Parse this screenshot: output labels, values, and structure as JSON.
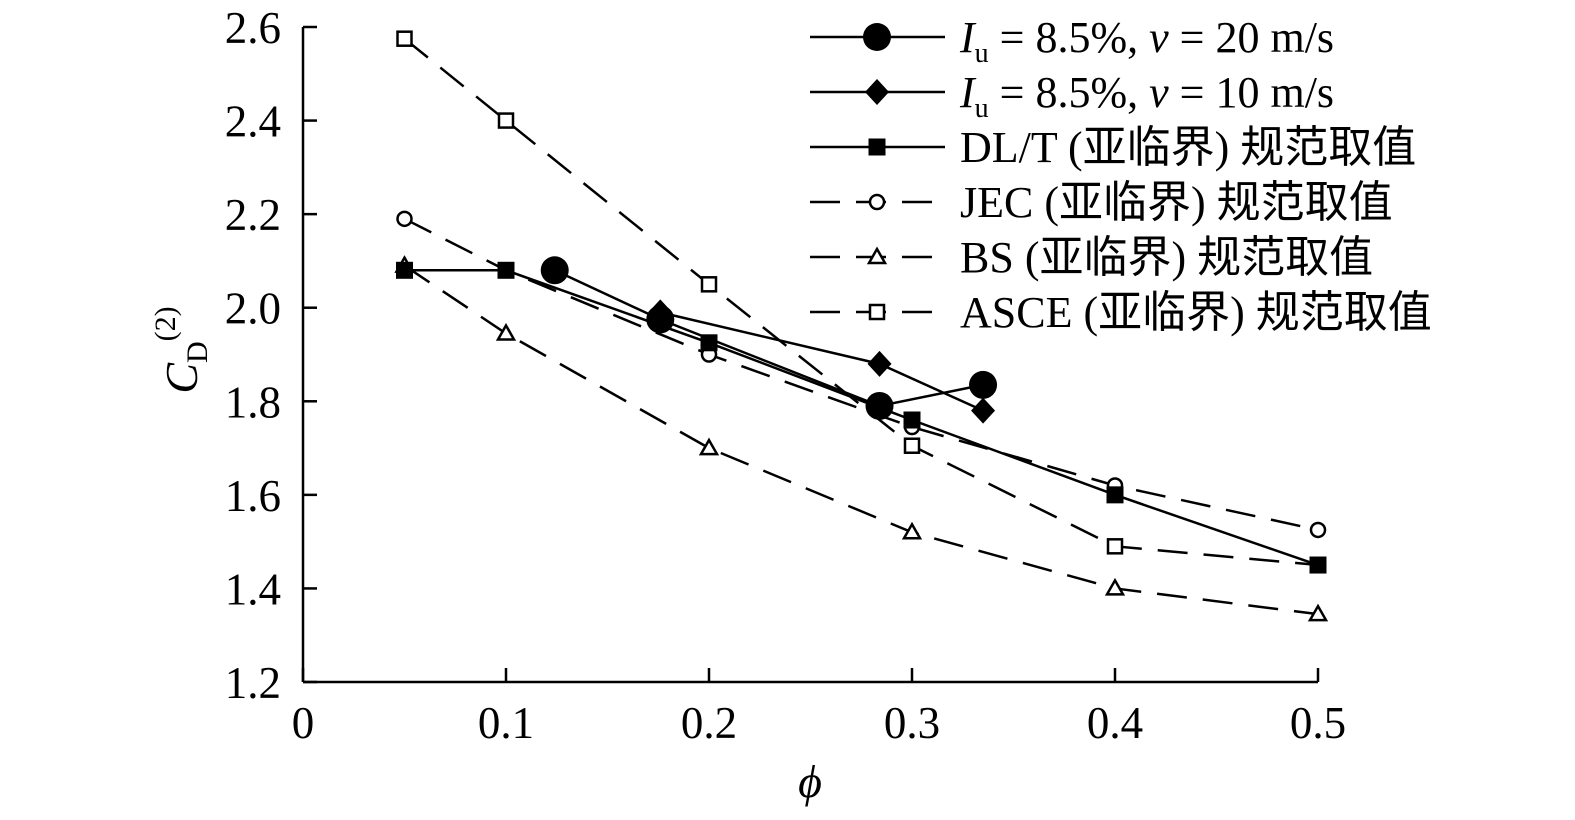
{
  "chart_data": {
    "type": "line",
    "xlabel": "ϕ",
    "ylabel": {
      "main": "C",
      "sub": "D",
      "sup": "(2)"
    },
    "xlim": [
      0,
      0.5
    ],
    "ylim": [
      1.2,
      2.6
    ],
    "x_ticks": [
      0,
      0.1,
      0.2,
      0.3,
      0.4,
      0.5
    ],
    "x_tick_labels": [
      "0",
      "0.1",
      "0.2",
      "0.3",
      "0.4",
      "0.5"
    ],
    "y_ticks": [
      1.2,
      1.4,
      1.6,
      1.8,
      2.0,
      2.2,
      2.4,
      2.6
    ],
    "y_tick_labels": [
      "1.2",
      "1.4",
      "1.6",
      "1.8",
      "2.0",
      "2.2",
      "2.4",
      "2.6"
    ],
    "grid": false,
    "legend_position": "top-right",
    "series": [
      {
        "name": "Iu = 8.5%, v = 20 m/s",
        "label_parts": {
          "i": "I",
          "sub": "u",
          "mid": " = 8.5%, ",
          "v": "v",
          "tail": " = 20 m/s"
        },
        "marker": "circle-filled",
        "line": "solid",
        "x": [
          0.124,
          0.176,
          0.284,
          0.335
        ],
        "y": [
          2.08,
          1.975,
          1.79,
          1.835
        ]
      },
      {
        "name": "Iu = 8.5%, v = 10 m/s",
        "label_parts": {
          "i": "I",
          "sub": "u",
          "mid": " = 8.5%, ",
          "v": "v",
          "tail": " = 10 m/s"
        },
        "marker": "diamond-filled",
        "line": "solid",
        "x": [
          0.176,
          0.284,
          0.335
        ],
        "y": [
          1.99,
          1.88,
          1.78
        ]
      },
      {
        "name": "DL/T (亚临界) 规范取值",
        "marker": "square-filled",
        "line": "solid",
        "x": [
          0.05,
          0.1,
          0.2,
          0.3,
          0.4,
          0.5
        ],
        "y": [
          2.08,
          2.08,
          1.925,
          1.76,
          1.6,
          1.45
        ]
      },
      {
        "name": "JEC (亚临界) 规范取值",
        "marker": "circle-open",
        "line": "dashed",
        "x": [
          0.05,
          0.1,
          0.2,
          0.3,
          0.4,
          0.5
        ],
        "y": [
          2.19,
          2.08,
          1.9,
          1.745,
          1.62,
          1.525
        ]
      },
      {
        "name": "BS (亚临界) 规范取值",
        "marker": "triangle-open",
        "line": "dashed",
        "x": [
          0.05,
          0.1,
          0.2,
          0.3,
          0.4,
          0.5
        ],
        "y": [
          2.09,
          1.945,
          1.7,
          1.52,
          1.4,
          1.345
        ]
      },
      {
        "name": "ASCE (亚临界) 规范取值",
        "marker": "square-open",
        "line": "dashed",
        "x": [
          0.05,
          0.1,
          0.2,
          0.3,
          0.4,
          0.5
        ],
        "y": [
          2.575,
          2.4,
          2.05,
          1.705,
          1.49,
          1.45
        ]
      }
    ]
  }
}
